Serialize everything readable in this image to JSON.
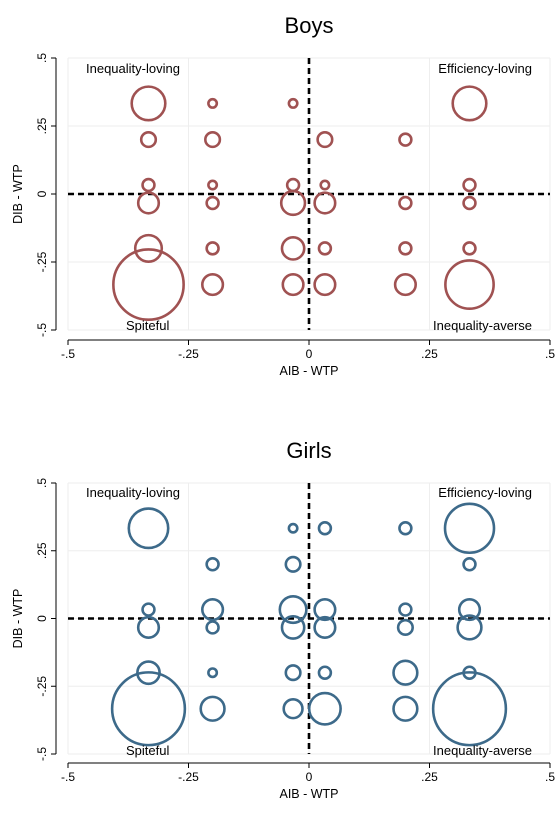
{
  "chart_data": [
    {
      "type": "scatter",
      "title": "Boys",
      "xlabel": "AIB - WTP",
      "ylabel": "DIB - WTP",
      "xlim": [
        -0.5,
        0.5
      ],
      "ylim": [
        -0.5,
        0.5
      ],
      "x_ticks": [
        "-.5",
        "-.25",
        "0",
        ".25",
        ".5"
      ],
      "y_ticks": [
        "-.5",
        "-.25",
        "0",
        ".25",
        ".5"
      ],
      "x_tick_values": [
        -0.5,
        -0.25,
        0,
        0.25,
        0.5
      ],
      "y_tick_values": [
        -0.5,
        -0.25,
        0,
        0.25,
        0.5
      ],
      "grid": true,
      "reference_lines": [
        {
          "axis": "x",
          "value": 0
        },
        {
          "axis": "y",
          "value": 0
        }
      ],
      "quadrant_labels": {
        "top_left": "Inequality-loving",
        "top_right": "Efficiency-loving",
        "bottom_left": "Spiteful",
        "bottom_right": "Inequality-averse"
      },
      "color": "#a05252",
      "points": [
        {
          "x": -0.333,
          "y": 0.333,
          "size": 16
        },
        {
          "x": -0.2,
          "y": 0.333,
          "size": 1
        },
        {
          "x": -0.033,
          "y": 0.333,
          "size": 1
        },
        {
          "x": 0.333,
          "y": 0.333,
          "size": 16
        },
        {
          "x": -0.333,
          "y": 0.2,
          "size": 3
        },
        {
          "x": -0.2,
          "y": 0.2,
          "size": 3
        },
        {
          "x": 0.033,
          "y": 0.2,
          "size": 3
        },
        {
          "x": 0.2,
          "y": 0.2,
          "size": 2
        },
        {
          "x": -0.333,
          "y": 0.033,
          "size": 2
        },
        {
          "x": -0.2,
          "y": 0.033,
          "size": 1
        },
        {
          "x": -0.033,
          "y": 0.033,
          "size": 2
        },
        {
          "x": 0.033,
          "y": 0.033,
          "size": 1
        },
        {
          "x": 0.333,
          "y": 0.033,
          "size": 2
        },
        {
          "x": -0.333,
          "y": -0.033,
          "size": 6
        },
        {
          "x": -0.2,
          "y": -0.033,
          "size": 2
        },
        {
          "x": -0.033,
          "y": -0.033,
          "size": 8
        },
        {
          "x": 0.033,
          "y": -0.033,
          "size": 6
        },
        {
          "x": 0.2,
          "y": -0.033,
          "size": 2
        },
        {
          "x": 0.333,
          "y": -0.033,
          "size": 2
        },
        {
          "x": -0.333,
          "y": -0.2,
          "size": 10
        },
        {
          "x": -0.2,
          "y": -0.2,
          "size": 2
        },
        {
          "x": -0.033,
          "y": -0.2,
          "size": 7
        },
        {
          "x": 0.033,
          "y": -0.2,
          "size": 2
        },
        {
          "x": 0.2,
          "y": -0.2,
          "size": 2
        },
        {
          "x": 0.333,
          "y": -0.2,
          "size": 2
        },
        {
          "x": -0.333,
          "y": -0.333,
          "size": 70
        },
        {
          "x": -0.2,
          "y": -0.333,
          "size": 6
        },
        {
          "x": -0.033,
          "y": -0.333,
          "size": 6
        },
        {
          "x": 0.033,
          "y": -0.333,
          "size": 6
        },
        {
          "x": 0.2,
          "y": -0.333,
          "size": 6
        },
        {
          "x": 0.333,
          "y": -0.333,
          "size": 33
        }
      ]
    },
    {
      "type": "scatter",
      "title": "Girls",
      "xlabel": "AIB - WTP",
      "ylabel": "DIB - WTP",
      "xlim": [
        -0.5,
        0.5
      ],
      "ylim": [
        -0.5,
        0.5
      ],
      "x_ticks": [
        "-.5",
        "-.25",
        "0",
        ".25",
        ".5"
      ],
      "y_ticks": [
        "-.5",
        "-.25",
        "0",
        ".25",
        ".5"
      ],
      "x_tick_values": [
        -0.5,
        -0.25,
        0,
        0.25,
        0.5
      ],
      "y_tick_values": [
        -0.5,
        -0.25,
        0,
        0.25,
        0.5
      ],
      "grid": true,
      "reference_lines": [
        {
          "axis": "x",
          "value": 0
        },
        {
          "axis": "y",
          "value": 0
        }
      ],
      "quadrant_labels": {
        "top_left": "Inequality-loving",
        "top_right": "Efficiency-loving",
        "bottom_left": "Spiteful",
        "bottom_right": "Inequality-averse"
      },
      "color": "#3d6a8a",
      "points": [
        {
          "x": -0.333,
          "y": 0.333,
          "size": 22
        },
        {
          "x": -0.033,
          "y": 0.333,
          "size": 1
        },
        {
          "x": 0.033,
          "y": 0.333,
          "size": 2
        },
        {
          "x": 0.2,
          "y": 0.333,
          "size": 2
        },
        {
          "x": 0.333,
          "y": 0.333,
          "size": 34
        },
        {
          "x": -0.2,
          "y": 0.2,
          "size": 2
        },
        {
          "x": -0.033,
          "y": 0.2,
          "size": 3
        },
        {
          "x": 0.333,
          "y": 0.2,
          "size": 2
        },
        {
          "x": -0.333,
          "y": 0.033,
          "size": 2
        },
        {
          "x": -0.2,
          "y": 0.033,
          "size": 6
        },
        {
          "x": -0.033,
          "y": 0.033,
          "size": 10
        },
        {
          "x": 0.033,
          "y": 0.033,
          "size": 6
        },
        {
          "x": 0.2,
          "y": 0.033,
          "size": 2
        },
        {
          "x": 0.333,
          "y": 0.033,
          "size": 6
        },
        {
          "x": -0.333,
          "y": -0.033,
          "size": 6
        },
        {
          "x": -0.2,
          "y": -0.033,
          "size": 2
        },
        {
          "x": -0.033,
          "y": -0.033,
          "size": 7
        },
        {
          "x": 0.033,
          "y": -0.033,
          "size": 6
        },
        {
          "x": 0.2,
          "y": -0.033,
          "size": 3
        },
        {
          "x": 0.333,
          "y": -0.033,
          "size": 8
        },
        {
          "x": -0.333,
          "y": -0.2,
          "size": 7
        },
        {
          "x": -0.2,
          "y": -0.2,
          "size": 1
        },
        {
          "x": -0.033,
          "y": -0.2,
          "size": 3
        },
        {
          "x": 0.033,
          "y": -0.2,
          "size": 2
        },
        {
          "x": 0.2,
          "y": -0.2,
          "size": 8
        },
        {
          "x": 0.333,
          "y": -0.2,
          "size": 2
        },
        {
          "x": -0.333,
          "y": -0.333,
          "size": 75
        },
        {
          "x": -0.2,
          "y": -0.333,
          "size": 8
        },
        {
          "x": -0.033,
          "y": -0.333,
          "size": 5
        },
        {
          "x": 0.033,
          "y": -0.333,
          "size": 14
        },
        {
          "x": 0.2,
          "y": -0.333,
          "size": 8
        },
        {
          "x": 0.333,
          "y": -0.333,
          "size": 75
        }
      ]
    }
  ]
}
